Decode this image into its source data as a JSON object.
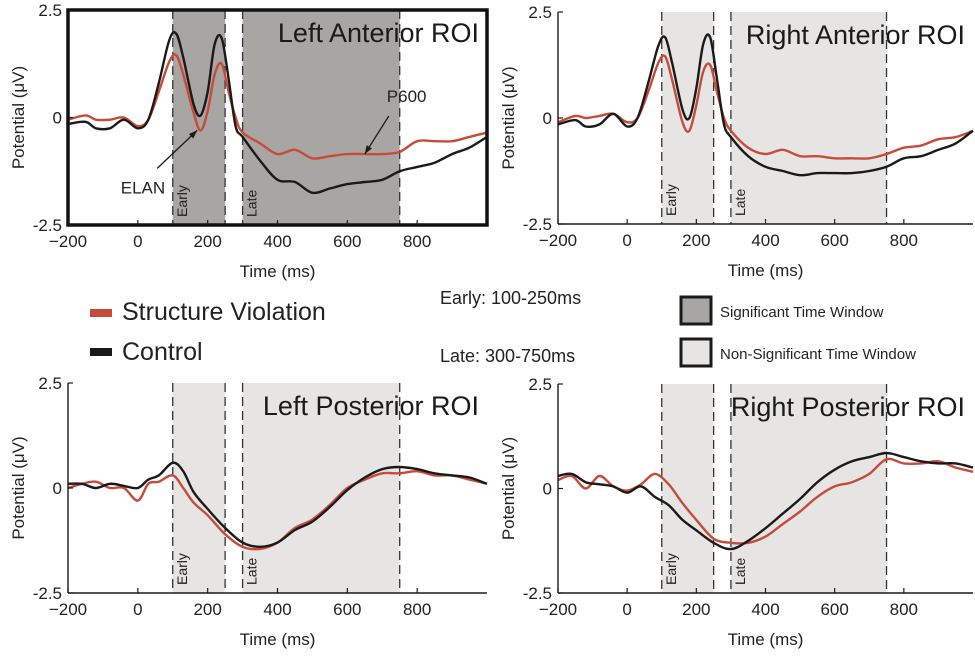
{
  "colors": {
    "structure_violation": "#c84b3a",
    "control": "#1a1a1a",
    "significant_window": "#a8a6a3",
    "nonsignificant_window": "#e6e5e3"
  },
  "legend": {
    "structure_violation": "Structure Violation",
    "control": "Control",
    "early_range": "Early: 100-250ms",
    "late_range": "Late: 300-750ms",
    "significant": "Significant Time Window",
    "nonsignificant": "Non-Significant Time Window"
  },
  "chart_data": [
    {
      "type": "line",
      "title": "Left Anterior ROI",
      "xlabel": "Time (ms)",
      "ylabel": "Potential (μV)",
      "xlim": [
        -200,
        1000
      ],
      "ylim": [
        -2.5,
        2.5
      ],
      "xticks": [
        -200,
        0,
        200,
        400,
        600,
        800
      ],
      "yticks": [
        2.5,
        0,
        -2.5
      ],
      "ytick_labels": [
        "2.5",
        "0",
        "-2.5"
      ],
      "highlighted": true,
      "windows": [
        {
          "label": "Early",
          "start": 100,
          "end": 250,
          "significant": true
        },
        {
          "label": "Late",
          "start": 300,
          "end": 750,
          "significant": true
        }
      ],
      "annotations": [
        {
          "text": "ELAN",
          "x": 170,
          "y": -0.3
        },
        {
          "text": "P600",
          "x": 650,
          "y": -0.85
        }
      ],
      "series": [
        {
          "name": "Structure Violation",
          "color_key": "structure_violation",
          "x": [
            -200,
            -150,
            -120,
            -80,
            -40,
            0,
            30,
            60,
            90,
            110,
            130,
            160,
            180,
            200,
            220,
            240,
            260,
            280,
            300,
            350,
            400,
            450,
            500,
            550,
            600,
            650,
            700,
            750,
            800,
            850,
            900,
            950,
            1000
          ],
          "y": [
            -0.05,
            0.05,
            -0.05,
            -0.05,
            0.0,
            -0.2,
            -0.05,
            0.6,
            1.3,
            1.45,
            1.0,
            0.1,
            -0.3,
            0.15,
            1.0,
            1.25,
            0.6,
            0.0,
            -0.35,
            -0.6,
            -0.85,
            -0.75,
            -0.95,
            -0.9,
            -0.85,
            -0.85,
            -0.85,
            -0.8,
            -0.55,
            -0.55,
            -0.55,
            -0.45,
            -0.35
          ]
        },
        {
          "name": "Control",
          "color_key": "control",
          "x": [
            -200,
            -150,
            -120,
            -80,
            -40,
            0,
            30,
            60,
            90,
            110,
            130,
            160,
            180,
            200,
            220,
            240,
            260,
            280,
            300,
            350,
            400,
            450,
            500,
            550,
            600,
            650,
            700,
            750,
            800,
            850,
            900,
            950,
            1000
          ],
          "y": [
            -0.15,
            -0.1,
            -0.25,
            -0.25,
            -0.05,
            -0.25,
            -0.05,
            0.8,
            1.8,
            1.95,
            1.4,
            0.3,
            0.05,
            0.6,
            1.7,
            1.85,
            0.9,
            -0.2,
            -0.45,
            -1.0,
            -1.45,
            -1.5,
            -1.75,
            -1.65,
            -1.55,
            -1.5,
            -1.45,
            -1.25,
            -1.15,
            -1.05,
            -0.85,
            -0.7,
            -0.45
          ]
        }
      ]
    },
    {
      "type": "line",
      "title": "Right Anterior ROI",
      "xlabel": "Time (ms)",
      "ylabel": "Potential (μV)",
      "xlim": [
        -200,
        1000
      ],
      "ylim": [
        -2.5,
        2.5
      ],
      "xticks": [
        -200,
        0,
        200,
        400,
        600,
        800
      ],
      "yticks": [
        2.5,
        0,
        -2.5
      ],
      "ytick_labels": [
        "2.5",
        "0",
        "-2.5"
      ],
      "highlighted": false,
      "windows": [
        {
          "label": "Early",
          "start": 100,
          "end": 250,
          "significant": false
        },
        {
          "label": "Late",
          "start": 300,
          "end": 750,
          "significant": false
        }
      ],
      "annotations": [],
      "series": [
        {
          "name": "Structure Violation",
          "color_key": "structure_violation",
          "x": [
            -200,
            -150,
            -120,
            -80,
            -40,
            0,
            30,
            60,
            90,
            110,
            130,
            160,
            180,
            200,
            220,
            240,
            260,
            280,
            300,
            350,
            400,
            450,
            500,
            550,
            600,
            650,
            700,
            750,
            800,
            850,
            900,
            950,
            1000
          ],
          "y": [
            -0.1,
            0.05,
            0.0,
            0.05,
            0.1,
            -0.1,
            0.0,
            0.6,
            1.3,
            1.45,
            0.9,
            -0.1,
            -0.3,
            0.3,
            1.1,
            1.25,
            0.6,
            0.0,
            -0.3,
            -0.7,
            -0.85,
            -0.75,
            -0.9,
            -0.9,
            -0.95,
            -0.95,
            -0.95,
            -0.85,
            -0.7,
            -0.65,
            -0.5,
            -0.45,
            -0.3
          ]
        },
        {
          "name": "Control",
          "color_key": "control",
          "x": [
            -200,
            -150,
            -120,
            -80,
            -40,
            0,
            30,
            60,
            90,
            110,
            130,
            160,
            180,
            200,
            220,
            240,
            260,
            280,
            300,
            350,
            400,
            450,
            500,
            550,
            600,
            650,
            700,
            750,
            800,
            850,
            900,
            950,
            1000
          ],
          "y": [
            -0.15,
            -0.05,
            -0.2,
            -0.15,
            0.1,
            -0.2,
            0.0,
            0.8,
            1.7,
            1.9,
            1.3,
            0.2,
            0.0,
            0.7,
            1.75,
            1.9,
            0.9,
            -0.15,
            -0.45,
            -0.9,
            -1.15,
            -1.25,
            -1.35,
            -1.3,
            -1.3,
            -1.3,
            -1.25,
            -1.15,
            -0.95,
            -0.9,
            -0.75,
            -0.6,
            -0.3
          ]
        }
      ]
    },
    {
      "type": "line",
      "title": "Left Posterior ROI",
      "xlabel": "Time (ms)",
      "ylabel": "Potential (μV)",
      "xlim": [
        -200,
        1000
      ],
      "ylim": [
        -2.5,
        2.5
      ],
      "xticks": [
        -200,
        0,
        200,
        400,
        600,
        800
      ],
      "yticks": [
        2.5,
        0,
        -2.5
      ],
      "ytick_labels": [
        "2.5",
        "0",
        "-2.5"
      ],
      "highlighted": false,
      "windows": [
        {
          "label": "Early",
          "start": 100,
          "end": 250,
          "significant": false
        },
        {
          "label": "Late",
          "start": 300,
          "end": 750,
          "significant": false
        }
      ],
      "annotations": [],
      "series": [
        {
          "name": "Structure Violation",
          "color_key": "structure_violation",
          "x": [
            -200,
            -160,
            -120,
            -80,
            -40,
            0,
            30,
            60,
            100,
            130,
            160,
            200,
            250,
            300,
            350,
            400,
            450,
            500,
            550,
            600,
            650,
            700,
            750,
            800,
            850,
            900,
            950,
            1000
          ],
          "y": [
            0.0,
            0.1,
            0.15,
            0.0,
            0.0,
            -0.3,
            0.1,
            0.15,
            0.3,
            0.0,
            -0.35,
            -0.65,
            -1.1,
            -1.4,
            -1.45,
            -1.3,
            -0.95,
            -0.75,
            -0.4,
            0.0,
            0.2,
            0.35,
            0.35,
            0.4,
            0.3,
            0.3,
            0.2,
            0.1
          ]
        },
        {
          "name": "Control",
          "color_key": "control",
          "x": [
            -200,
            -160,
            -120,
            -80,
            -40,
            0,
            30,
            60,
            100,
            130,
            160,
            200,
            250,
            300,
            350,
            400,
            450,
            500,
            550,
            600,
            650,
            700,
            750,
            800,
            850,
            900,
            950,
            1000
          ],
          "y": [
            0.1,
            0.1,
            0.0,
            0.1,
            0.05,
            0.0,
            0.2,
            0.3,
            0.6,
            0.4,
            -0.1,
            -0.5,
            -0.95,
            -1.3,
            -1.4,
            -1.3,
            -1.0,
            -0.8,
            -0.45,
            -0.05,
            0.25,
            0.45,
            0.5,
            0.45,
            0.35,
            0.3,
            0.25,
            0.1
          ]
        }
      ]
    },
    {
      "type": "line",
      "title": "Right Posterior ROI",
      "xlabel": "Time (ms)",
      "ylabel": "Potential (μV)",
      "xlim": [
        -200,
        1000
      ],
      "ylim": [
        -2.5,
        2.5
      ],
      "xticks": [
        -200,
        0,
        200,
        400,
        600,
        800
      ],
      "yticks": [
        2.5,
        0,
        -2.5
      ],
      "ytick_labels": [
        "2.5",
        "0",
        "-2.5"
      ],
      "highlighted": false,
      "windows": [
        {
          "label": "Early",
          "start": 100,
          "end": 250,
          "significant": false
        },
        {
          "label": "Late",
          "start": 300,
          "end": 750,
          "significant": false
        }
      ],
      "annotations": [],
      "series": [
        {
          "name": "Structure Violation",
          "color_key": "structure_violation",
          "x": [
            -200,
            -160,
            -120,
            -80,
            -40,
            0,
            40,
            80,
            120,
            160,
            200,
            250,
            300,
            350,
            400,
            450,
            500,
            550,
            600,
            650,
            700,
            750,
            800,
            850,
            900,
            950,
            1000
          ],
          "y": [
            0.2,
            0.3,
            0.0,
            0.3,
            0.05,
            -0.05,
            0.1,
            0.35,
            0.1,
            -0.35,
            -0.75,
            -1.2,
            -1.3,
            -1.3,
            -1.15,
            -0.85,
            -0.55,
            -0.2,
            0.05,
            0.15,
            0.35,
            0.7,
            0.6,
            0.6,
            0.65,
            0.5,
            0.4
          ]
        },
        {
          "name": "Control",
          "color_key": "control",
          "x": [
            -200,
            -160,
            -120,
            -80,
            -40,
            0,
            40,
            80,
            120,
            160,
            200,
            250,
            300,
            350,
            400,
            450,
            500,
            550,
            600,
            650,
            700,
            750,
            800,
            850,
            900,
            950,
            1000
          ],
          "y": [
            0.3,
            0.35,
            0.15,
            0.1,
            0.05,
            -0.1,
            0.05,
            -0.2,
            -0.4,
            -0.75,
            -1.0,
            -1.3,
            -1.45,
            -1.25,
            -0.95,
            -0.6,
            -0.25,
            0.15,
            0.45,
            0.65,
            0.75,
            0.85,
            0.75,
            0.65,
            0.6,
            0.6,
            0.5
          ]
        }
      ]
    }
  ]
}
